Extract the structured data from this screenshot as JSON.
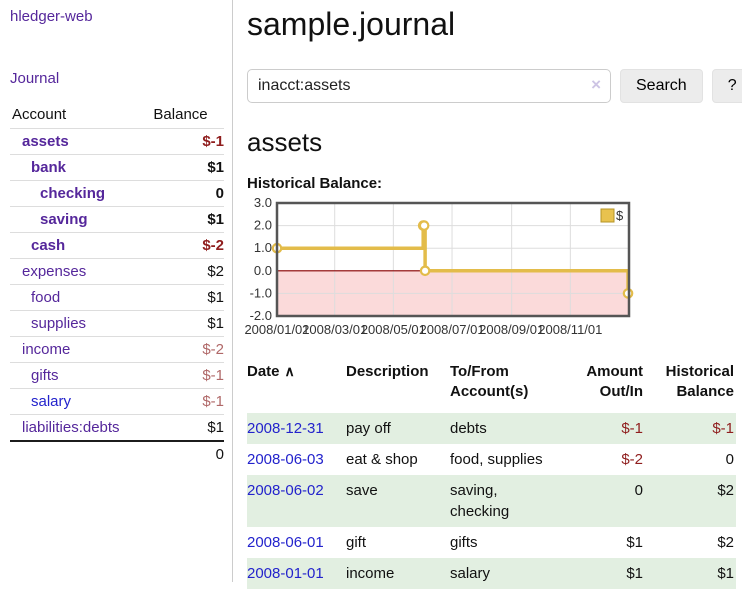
{
  "app": {
    "brand": "hledger-web",
    "nav_journal": "Journal"
  },
  "sidebar": {
    "header": {
      "account": "Account",
      "balance": "Balance"
    },
    "rows": [
      {
        "label": "assets",
        "balance": "$-1",
        "depth": 1,
        "bold": true
      },
      {
        "label": "bank",
        "balance": "$1",
        "depth": 2,
        "bold": true
      },
      {
        "label": "checking",
        "balance": "0",
        "depth": 3,
        "bold": true
      },
      {
        "label": "saving",
        "balance": "$1",
        "depth": 3,
        "bold": true
      },
      {
        "label": "cash",
        "balance": "$-2",
        "depth": 2,
        "bold": true
      },
      {
        "label": "expenses",
        "balance": "$2",
        "depth": 1,
        "bold": false
      },
      {
        "label": "food",
        "balance": "$1",
        "depth": 2,
        "bold": false
      },
      {
        "label": "supplies",
        "balance": "$1",
        "depth": 2,
        "bold": false
      },
      {
        "label": "income",
        "balance": "$-2",
        "depth": 1,
        "bold": false
      },
      {
        "label": "gifts",
        "balance": "$-1",
        "depth": 2,
        "bold": false
      },
      {
        "label": "salary",
        "balance": "$-1",
        "depth": 2,
        "bold": false,
        "link": "blue"
      },
      {
        "label": "liabilities:debts",
        "balance": "$1",
        "depth": 1,
        "bold": false
      }
    ],
    "total": "0"
  },
  "header": {
    "title": "sample.journal"
  },
  "search": {
    "value": "inacct:assets",
    "clear_icon": "×",
    "button": "Search",
    "help": "?"
  },
  "register": {
    "title": "assets",
    "chart_label": "Historical Balance:",
    "table": {
      "headers": {
        "date": "Date",
        "sort_icon": "∧",
        "description": "Description",
        "accounts": "To/From Account(s)",
        "amount": "Amount Out/In",
        "balance": "Historical Balance"
      },
      "rows": [
        {
          "date": "2008-12-31",
          "description": "pay off",
          "accounts": "debts",
          "amount": "$-1",
          "balance": "$-1"
        },
        {
          "date": "2008-06-03",
          "description": "eat & shop",
          "accounts": "food, supplies",
          "amount": "$-2",
          "balance": "0"
        },
        {
          "date": "2008-06-02",
          "description": "save",
          "accounts": "saving, checking",
          "amount": "0",
          "balance": "$2"
        },
        {
          "date": "2008-06-01",
          "description": "gift",
          "accounts": "gifts",
          "amount": "$1",
          "balance": "$2"
        },
        {
          "date": "2008-01-01",
          "description": "income",
          "accounts": "salary",
          "amount": "$1",
          "balance": "$1"
        }
      ]
    }
  },
  "chart_data": {
    "type": "line",
    "step": true,
    "title": "Historical Balance:",
    "xlim": [
      "2008-01-01",
      "2009-01-01"
    ],
    "ylim": [
      -2,
      3
    ],
    "yticks": [
      3,
      2,
      1,
      0,
      -1,
      -2
    ],
    "xticks": [
      "2008/01/01",
      "2008/03/01",
      "2008/05/01",
      "2008/07/01",
      "2008/09/01",
      "2008/11/01"
    ],
    "series": [
      {
        "name": "$",
        "points": [
          [
            "2008-01-01",
            1
          ],
          [
            "2008-06-01",
            2
          ],
          [
            "2008-06-02",
            2
          ],
          [
            "2008-06-03",
            0
          ],
          [
            "2008-12-31",
            -1
          ]
        ]
      }
    ],
    "legend_position": "top-right",
    "grid": true,
    "colors": {
      "line": "#e3bc4a",
      "marker_fill": "#ffffff",
      "negative_region": "#fbdada",
      "zero_line": "#8b0000",
      "grid": "#dddddd",
      "border": "#555555",
      "legend_fill": "#e8c24e",
      "legend_border": "#b59426"
    }
  }
}
